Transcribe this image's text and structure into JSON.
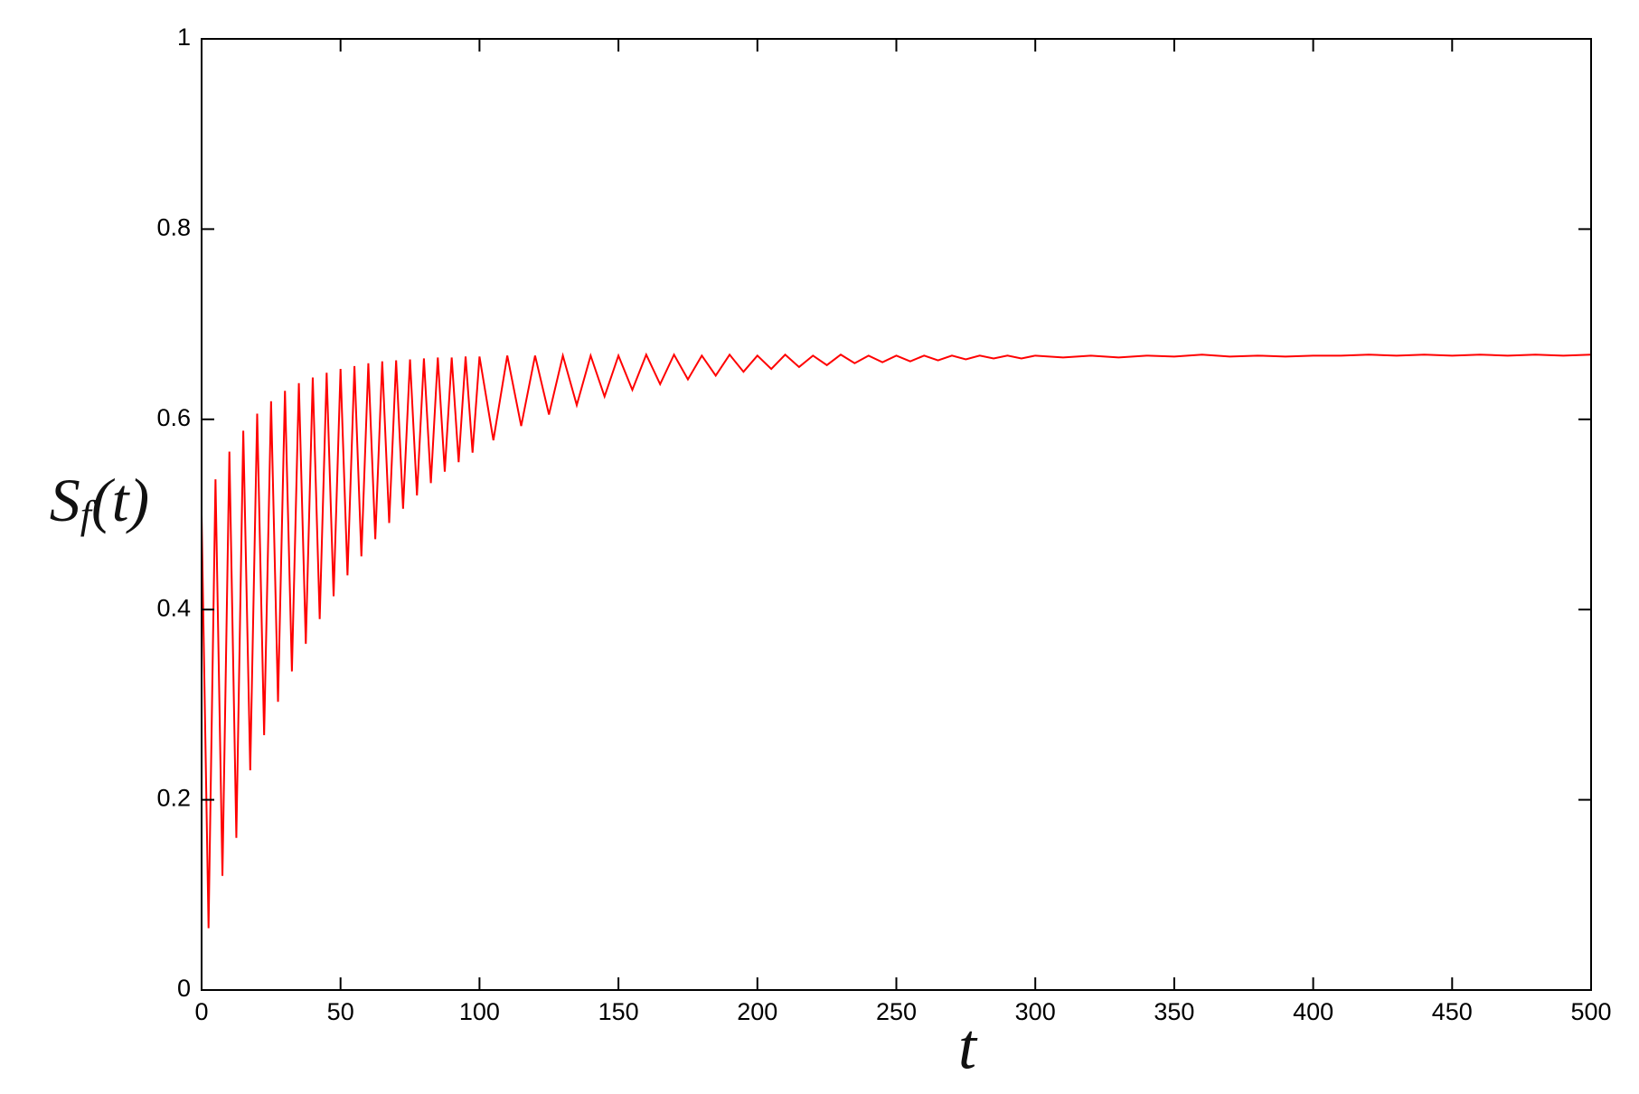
{
  "chart_data": {
    "type": "line",
    "x_label": "t",
    "y_label": {
      "base": "S",
      "sub": "f",
      "rest": "(t)"
    },
    "xlim": [
      0,
      500
    ],
    "xticks": [
      0,
      50,
      100,
      150,
      200,
      250,
      300,
      350,
      400,
      450,
      500
    ],
    "ylim": [
      0,
      1
    ],
    "yticks": [
      0,
      0.2,
      0.4,
      0.6,
      0.8,
      1
    ],
    "x": [
      0,
      2.5,
      5,
      7.5,
      10,
      12.5,
      15,
      17.5,
      20,
      22.5,
      25,
      27.5,
      30,
      32.5,
      35,
      37.5,
      40,
      42.5,
      45,
      47.5,
      50,
      52.5,
      55,
      57.5,
      60,
      62.5,
      65,
      67.5,
      70,
      72.5,
      75,
      77.5,
      80,
      82.5,
      85,
      87.5,
      90,
      92.5,
      95,
      97.5,
      100,
      105,
      110,
      115,
      120,
      125,
      130,
      135,
      140,
      145,
      150,
      155,
      160,
      165,
      170,
      175,
      180,
      185,
      190,
      195,
      200,
      205,
      210,
      215,
      220,
      225,
      230,
      235,
      240,
      245,
      250,
      255,
      260,
      265,
      270,
      275,
      280,
      285,
      290,
      295,
      300,
      310,
      320,
      330,
      340,
      350,
      360,
      370,
      380,
      390,
      400,
      410,
      420,
      430,
      440,
      450,
      460,
      470,
      480,
      490,
      500
    ],
    "series": [
      {
        "color": "#ff0000",
        "values": [
          0.5,
          0.065,
          0.537,
          0.12,
          0.566,
          0.16,
          0.588,
          0.231,
          0.606,
          0.268,
          0.619,
          0.303,
          0.63,
          0.335,
          0.638,
          0.364,
          0.644,
          0.39,
          0.649,
          0.414,
          0.653,
          0.436,
          0.656,
          0.456,
          0.659,
          0.474,
          0.661,
          0.491,
          0.662,
          0.506,
          0.663,
          0.52,
          0.664,
          0.533,
          0.665,
          0.545,
          0.665,
          0.555,
          0.666,
          0.565,
          0.666,
          0.578,
          0.667,
          0.593,
          0.667,
          0.605,
          0.667,
          0.615,
          0.667,
          0.624,
          0.667,
          0.631,
          0.668,
          0.637,
          0.668,
          0.642,
          0.667,
          0.646,
          0.668,
          0.65,
          0.667,
          0.653,
          0.668,
          0.655,
          0.667,
          0.657,
          0.668,
          0.659,
          0.667,
          0.66,
          0.667,
          0.661,
          0.667,
          0.662,
          0.667,
          0.663,
          0.667,
          0.664,
          0.667,
          0.664,
          0.667,
          0.665,
          0.667,
          0.665,
          0.667,
          0.666,
          0.668,
          0.666,
          0.667,
          0.666,
          0.667,
          0.667,
          0.668,
          0.667,
          0.668,
          0.667,
          0.668,
          0.667,
          0.668,
          0.667,
          0.668
        ]
      }
    ]
  }
}
